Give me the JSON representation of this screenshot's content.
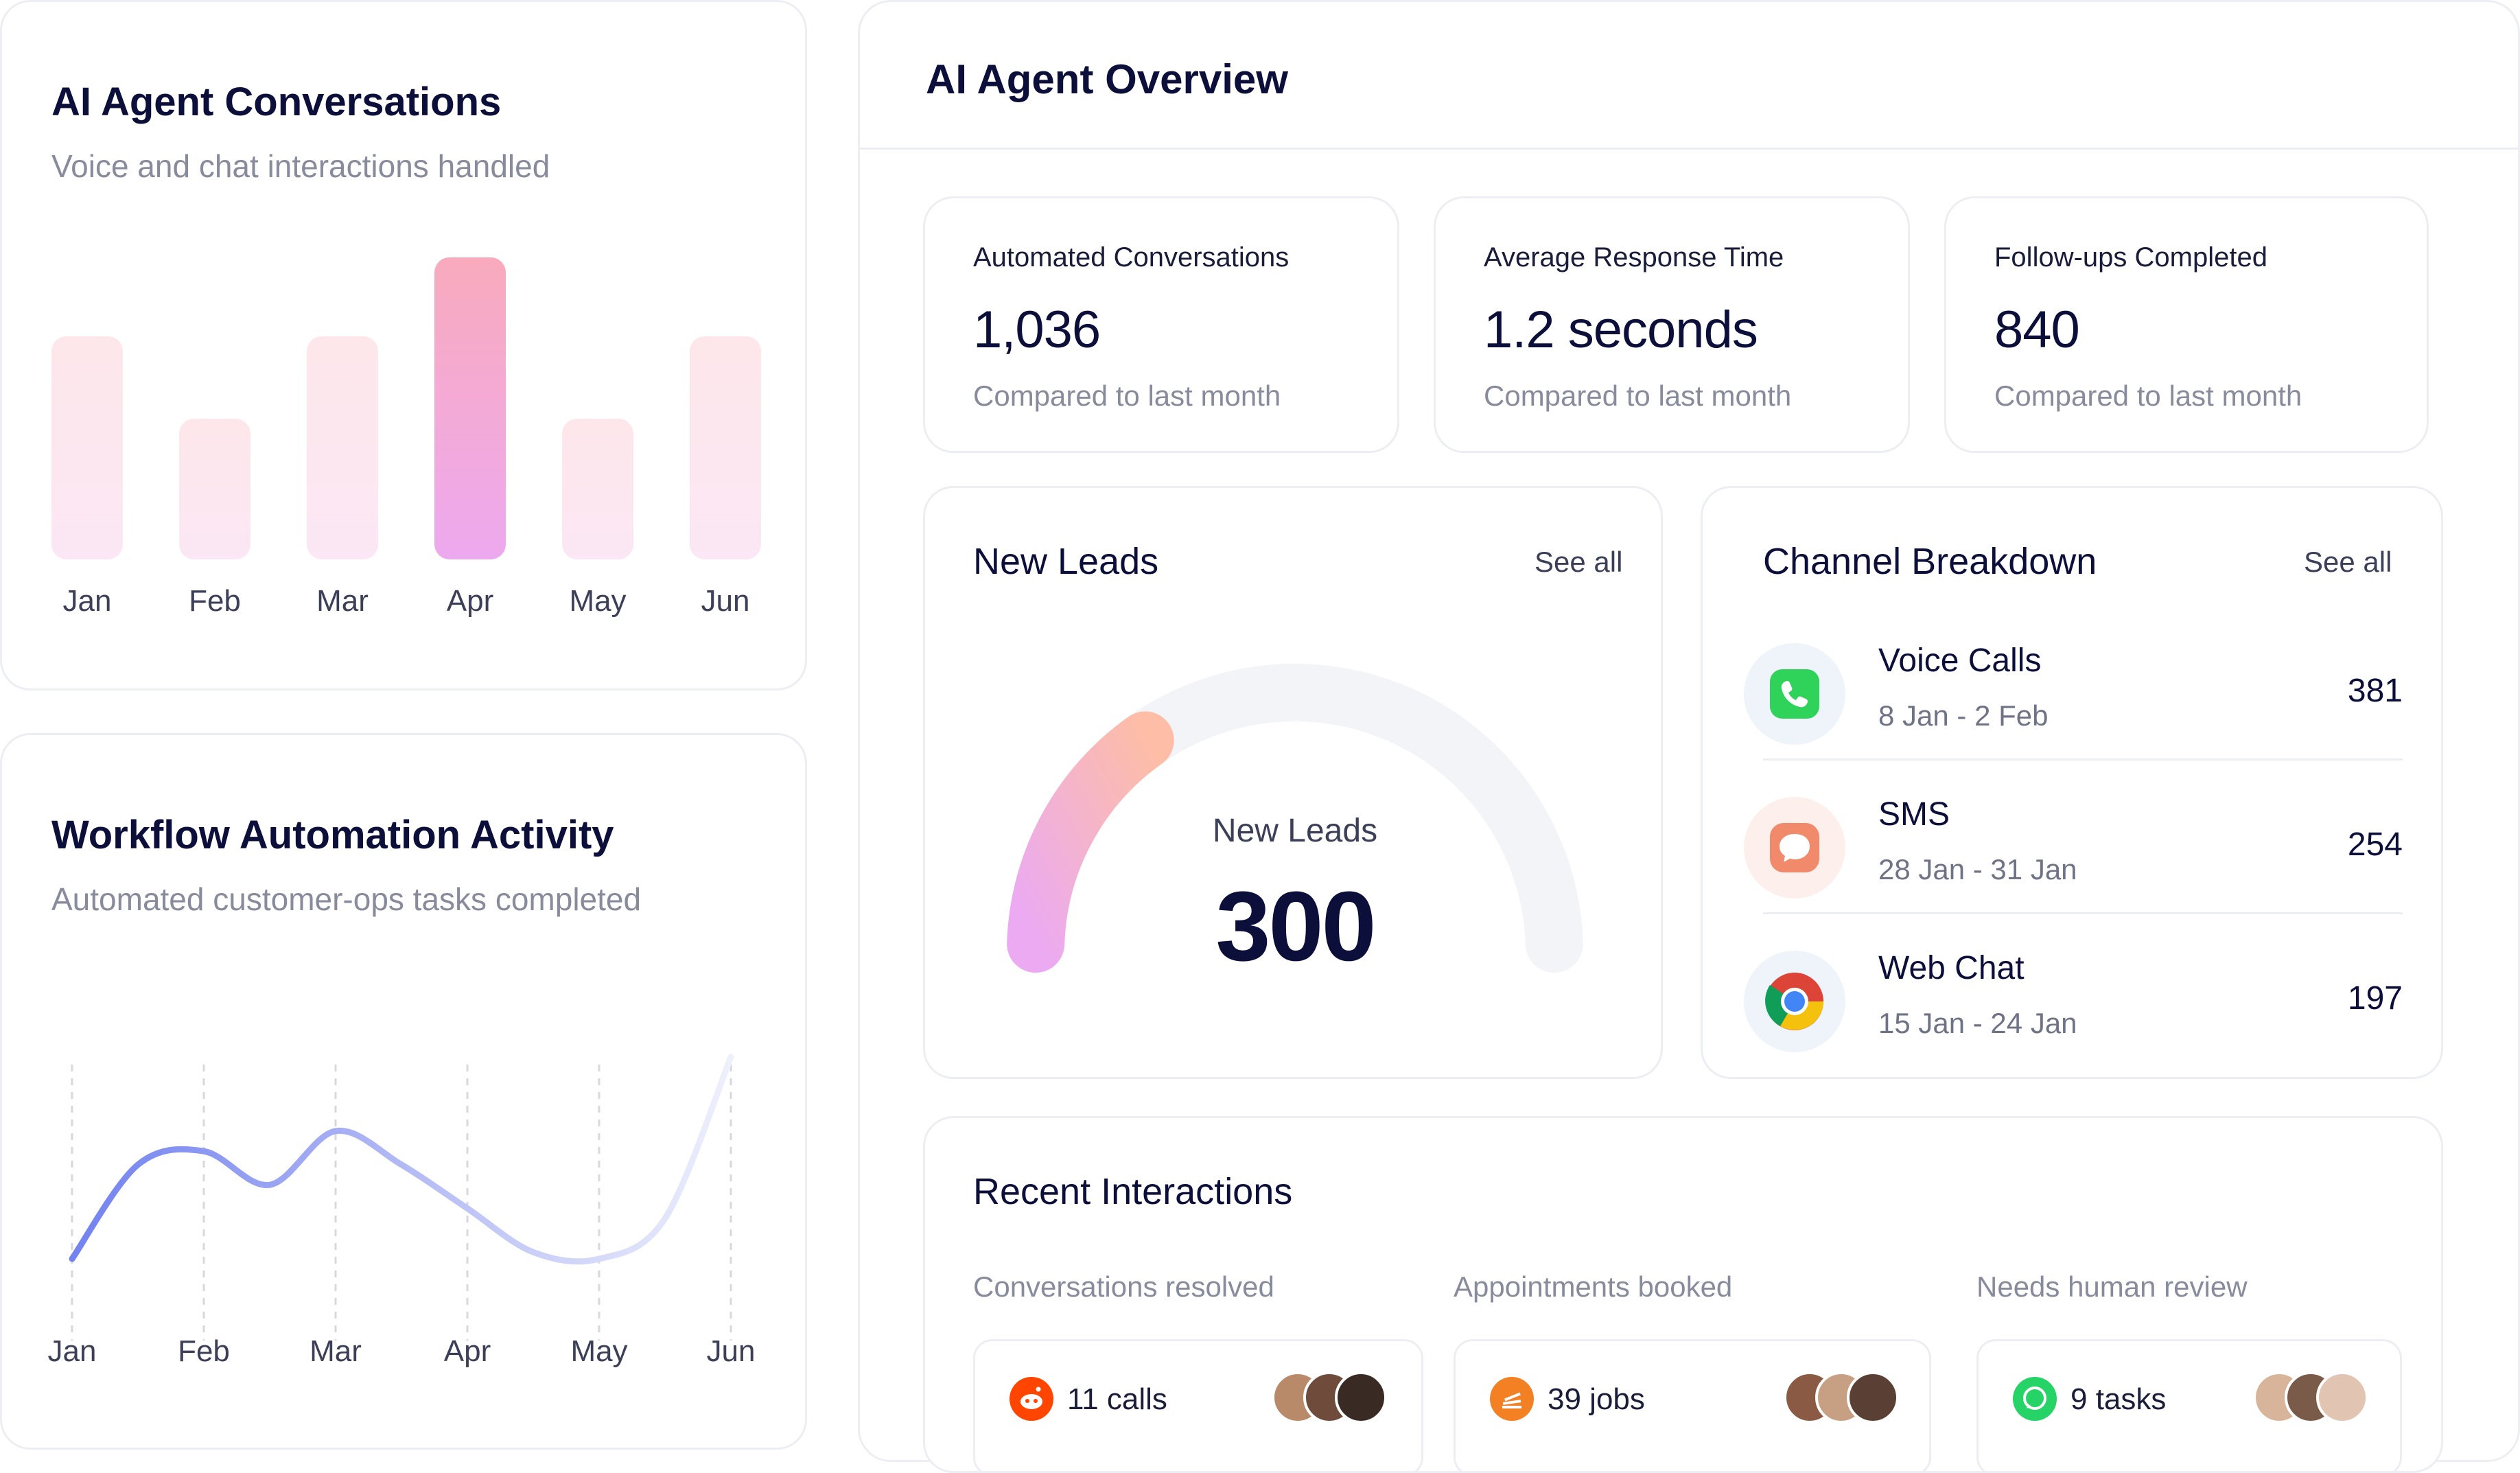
{
  "conversations": {
    "title": "AI Agent Conversations",
    "subtitle": "Voice and chat interactions handled"
  },
  "workflow": {
    "title": "Workflow Automation Activity",
    "subtitle": "Automated customer-ops tasks completed"
  },
  "chart_data": [
    {
      "type": "bar",
      "categories": [
        "Jan",
        "Feb",
        "Mar",
        "Apr",
        "May",
        "Jun"
      ],
      "values": [
        325,
        205,
        325,
        440,
        205,
        325
      ],
      "highlight": "Apr",
      "colors": {
        "bar": "#fce6ee",
        "active_top": "#f9aabd",
        "active_bottom": "#eda9ef"
      }
    },
    {
      "type": "line",
      "categories": [
        "Jan",
        "Feb",
        "Mar",
        "Apr",
        "May",
        "Jun"
      ],
      "x": [
        0,
        0.5,
        1,
        1.5,
        2,
        2.5,
        3,
        3.5,
        4,
        4.5,
        5
      ],
      "values": [
        10,
        38,
        42,
        32,
        48,
        38,
        25,
        12,
        10,
        22,
        70
      ],
      "grid": true,
      "colors": {
        "line_start": "#7282f0",
        "line_end": "#eef0fc"
      }
    }
  ],
  "overview": {
    "title": "AI Agent Overview",
    "stats": [
      {
        "label": "Automated Conversations",
        "value": "1,036",
        "sub": "Compared to last month"
      },
      {
        "label": "Average Response Time",
        "value": "1.2 seconds",
        "sub": "Compared to last month"
      },
      {
        "label": "Follow-ups Completed",
        "value": "840",
        "sub": "Compared to last month"
      }
    ]
  },
  "leads": {
    "title": "New Leads",
    "see_all": "See all",
    "gauge_label": "New Leads",
    "gauge_value": "300",
    "gauge_fraction": 0.3
  },
  "channels": {
    "title": "Channel Breakdown",
    "see_all": "See all",
    "rows": [
      {
        "name": "Voice Calls",
        "dates": "8 Jan - 2 Feb",
        "count": "381",
        "icon": "phone-icon"
      },
      {
        "name": "SMS",
        "dates": "28 Jan - 31 Jan",
        "count": "254",
        "icon": "chat-bubble-icon"
      },
      {
        "name": "Web Chat",
        "dates": "15 Jan - 24 Jan",
        "count": "197",
        "icon": "chrome-icon"
      }
    ]
  },
  "recent": {
    "title": "Recent Interactions",
    "groups": [
      {
        "label": "Conversations resolved",
        "value": "11 calls",
        "icon": "reddit-icon",
        "color": "#ff4500"
      },
      {
        "label": "Appointments booked",
        "value": "39 jobs",
        "icon": "stackoverflow-icon",
        "color": "#f48024"
      },
      {
        "label": "Needs human review",
        "value": "9 tasks",
        "icon": "whatsapp-icon",
        "color": "#25d366"
      }
    ]
  }
}
